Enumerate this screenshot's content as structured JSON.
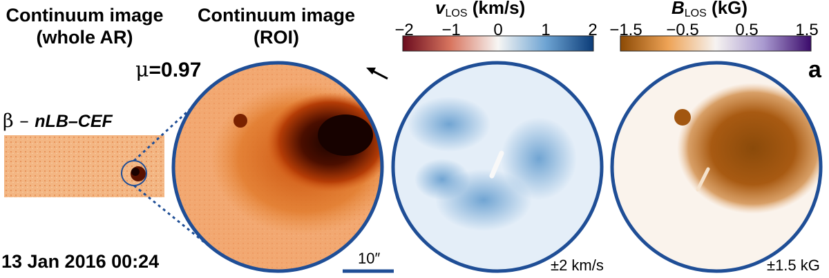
{
  "headers": {
    "whole_ar_line1": "Continuum image",
    "whole_ar_line2": "(whole AR)",
    "roi_line1": "Continuum image",
    "roi_line2": "(ROI)"
  },
  "mu_prefix": "μ",
  "mu_value": "=0.97",
  "beta_prefix": "β – ",
  "beta_label": "nLB–CEF",
  "timestamp": "13 Jan 2016 00:24",
  "scale_bar_label": "10″",
  "panel_label": "a",
  "velocity_colorbar": {
    "symbol": "v",
    "subscript": "LOS",
    "unit": "(km/s)",
    "ticks": [
      "−2",
      "−1",
      "0",
      "1",
      "2"
    ],
    "range_label": "±2 km/s"
  },
  "field_colorbar": {
    "symbol": "B",
    "subscript": "LOS",
    "unit": "(kG)",
    "ticks": [
      "−1.5",
      "−0.5",
      "0.5",
      "1.5"
    ],
    "range_label": "±1.5 kG"
  },
  "colors": {
    "circle_outline": "#1f4e96",
    "continuum_bright": "#f7b07a",
    "continuum_dark": "#2a0600",
    "velocity_blue": "#4a8cc6",
    "field_brown": "#a85a12"
  }
}
